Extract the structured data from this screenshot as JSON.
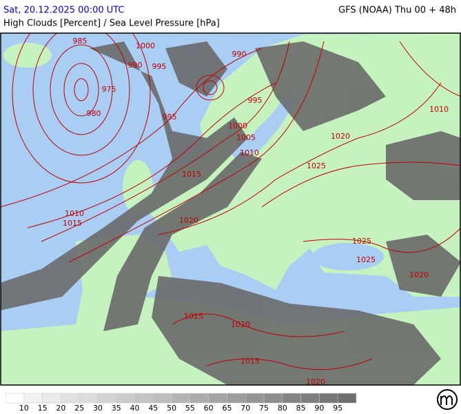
{
  "header": {
    "datetime": "Sat, 20.12.2025 00:00 UTC",
    "model": "GFS (NOAA) Thu 00 + 48h",
    "subtitle": "High Clouds [Percent] / Sea Level Pressure [hPa]"
  },
  "isobar_labels": [
    985,
    1000,
    990,
    995,
    975,
    980,
    995,
    990,
    995,
    1000,
    1005,
    1010,
    1015,
    1010,
    1015,
    1020,
    1020,
    1025,
    1010,
    1025,
    1025,
    1020,
    1020,
    1015,
    1015,
    1020
  ],
  "legend": {
    "ticks": [
      10,
      15,
      20,
      25,
      30,
      35,
      40,
      45,
      50,
      55,
      60,
      65,
      70,
      75,
      80,
      85,
      90,
      95
    ]
  }
}
